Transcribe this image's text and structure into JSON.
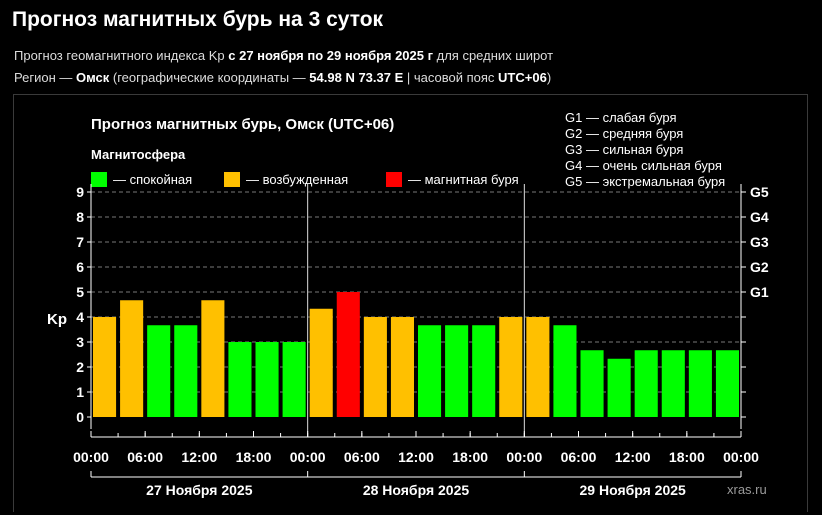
{
  "page": {
    "title": "Прогноз магнитных бурь на 3 суток",
    "subtitle_plain": "Прогноз геомагнитного индекса Kp ",
    "subtitle_bold": "с 27 ноября по 29 ноября 2025 г",
    "subtitle_tail": " для средних широт",
    "region_label": "Регион — ",
    "region_name": "Омск",
    "region_coords_pre": " (географические координаты — ",
    "region_coords": "54.98 N 73.37 E",
    "region_tz_pre": " | часовой пояс ",
    "region_tz": "UTC+06",
    "region_tail": ")"
  },
  "colors": {
    "quiet": "#00ff00",
    "excited": "#ffc000",
    "storm": "#ff0000"
  },
  "chart_data": {
    "type": "bar",
    "title": "Прогноз магнитных бурь, Омск (UTC+06)",
    "legend_title": "Магнитосфера",
    "legend": [
      {
        "key": "quiet",
        "label": "— спокойная"
      },
      {
        "key": "excited",
        "label": "— возбужденная"
      },
      {
        "key": "storm",
        "label": "— магнитная буря"
      }
    ],
    "storm_scale": [
      "G1 — слабая буря",
      "G2 — средняя буря",
      "G3 — сильная буря",
      "G4 — очень сильная буря",
      "G5 — экстремальная буря"
    ],
    "ylabel": "Kp",
    "ylim": [
      0,
      9
    ],
    "y_ticks": [
      "0",
      "1",
      "2",
      "3",
      "4",
      "5",
      "6",
      "7",
      "8",
      "9"
    ],
    "right_ticks": [
      {
        "value": 5,
        "label": "G1"
      },
      {
        "value": 6,
        "label": "G2"
      },
      {
        "value": 7,
        "label": "G3"
      },
      {
        "value": 8,
        "label": "G4"
      },
      {
        "value": 9,
        "label": "G5"
      }
    ],
    "grid": true,
    "x_tick_labels": [
      "00:00",
      "06:00",
      "12:00",
      "18:00",
      "00:00",
      "06:00",
      "12:00",
      "18:00",
      "00:00",
      "06:00",
      "12:00",
      "18:00",
      "00:00"
    ],
    "days": [
      "27 Ноября 2025",
      "28 Ноября 2025",
      "29 Ноября 2025"
    ],
    "values": [
      4.0,
      4.67,
      3.67,
      3.67,
      4.67,
      3.0,
      3.0,
      3.0,
      4.33,
      5.0,
      4.0,
      4.0,
      3.67,
      3.67,
      3.67,
      4.0,
      4.0,
      3.67,
      2.67,
      2.33,
      2.67,
      2.67,
      2.67,
      2.67
    ],
    "levels": [
      "excited",
      "excited",
      "quiet",
      "quiet",
      "excited",
      "quiet",
      "quiet",
      "quiet",
      "excited",
      "storm",
      "excited",
      "excited",
      "quiet",
      "quiet",
      "quiet",
      "excited",
      "excited",
      "quiet",
      "quiet",
      "quiet",
      "quiet",
      "quiet",
      "quiet",
      "quiet"
    ],
    "watermark": "xras.ru"
  }
}
